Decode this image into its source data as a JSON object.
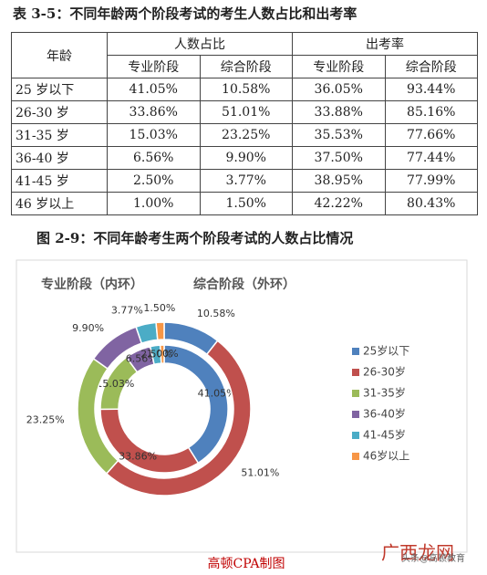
{
  "table": {
    "title": "表 3-5：不同年龄两个阶段考试的考生人数占比和出考率",
    "header": {
      "age": "年龄",
      "group1": "人数占比",
      "group2": "出考率",
      "sub": [
        "专业阶段",
        "综合阶段",
        "专业阶段",
        "综合阶段"
      ]
    },
    "rows": [
      [
        "25 岁以下",
        "41.05%",
        "10.58%",
        "36.05%",
        "93.44%"
      ],
      [
        "26-30 岁",
        "33.86%",
        "51.01%",
        "33.88%",
        "85.16%"
      ],
      [
        "31-35 岁",
        "15.03%",
        "23.25%",
        "35.53%",
        "77.66%"
      ],
      [
        "36-40 岁",
        "6.56%",
        "9.90%",
        "37.50%",
        "77.44%"
      ],
      [
        "41-45 岁",
        "2.50%",
        "3.77%",
        "38.95%",
        "77.99%"
      ],
      [
        "46 岁以上",
        "1.00%",
        "1.50%",
        "42.22%",
        "80.43%"
      ]
    ]
  },
  "figure_title": "图 2-9：不同年龄考生两个阶段考试的人数占比情况",
  "chart_data": {
    "type": "donut",
    "categories": [
      "25岁以下",
      "26-30岁",
      "31-35岁",
      "36-40岁",
      "41-45岁",
      "46岁以上"
    ],
    "colors": [
      "#4f81bd",
      "#c0504d",
      "#9bbb59",
      "#8064a2",
      "#4bacc6",
      "#f79646"
    ],
    "series": [
      {
        "name": "专业阶段（内环）",
        "values": [
          41.05,
          33.86,
          15.03,
          6.56,
          2.5,
          1.0
        ],
        "value_labels": [
          "41.05%",
          "33.86%",
          "15.03%",
          "6.56%",
          "2.50%",
          "1.00%"
        ]
      },
      {
        "name": "综合阶段（外环）",
        "values": [
          10.58,
          51.01,
          23.25,
          9.9,
          3.77,
          1.5
        ],
        "value_labels": [
          "10.58%",
          "51.01%",
          "23.25%",
          "9.90%",
          "3.77%",
          "1.50%"
        ]
      }
    ]
  },
  "caption": "高顿CPA制图",
  "watermark": {
    "site": "广西龙网",
    "source": "头条@高顿教育"
  }
}
